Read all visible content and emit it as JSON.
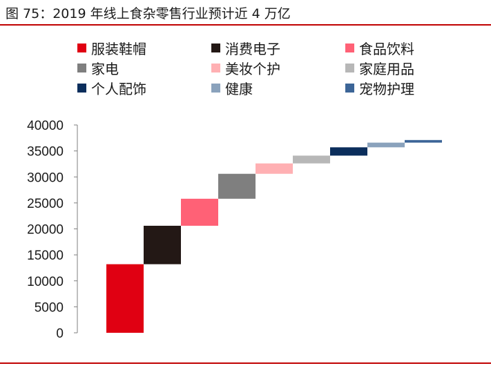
{
  "title": "图 75：2019 年线上食杂零售行业预计近 4 万亿",
  "colors": {
    "rule": "#c00000",
    "axis": "#7f7f7f"
  },
  "chart_data": {
    "type": "bar",
    "subtype": "waterfall",
    "title": "",
    "xlabel": "",
    "ylabel": "",
    "ylim": [
      0,
      40000
    ],
    "yticks": [
      0,
      5000,
      10000,
      15000,
      20000,
      25000,
      30000,
      35000,
      40000
    ],
    "grid": false,
    "legend_position": "top",
    "categories": [
      "服装鞋帽",
      "消费电子",
      "食品饮料",
      "家电",
      "美妆个护",
      "家庭用品",
      "个人配饰",
      "健康",
      "宠物护理"
    ],
    "values": [
      13200,
      7400,
      5200,
      4800,
      2000,
      1500,
      1600,
      900,
      500
    ],
    "colors": [
      "#e00012",
      "#231815",
      "#ff6176",
      "#7f7f7f",
      "#ffb0b3",
      "#b7b7b7",
      "#0b2e5c",
      "#8aa2bc",
      "#3c6597"
    ]
  }
}
